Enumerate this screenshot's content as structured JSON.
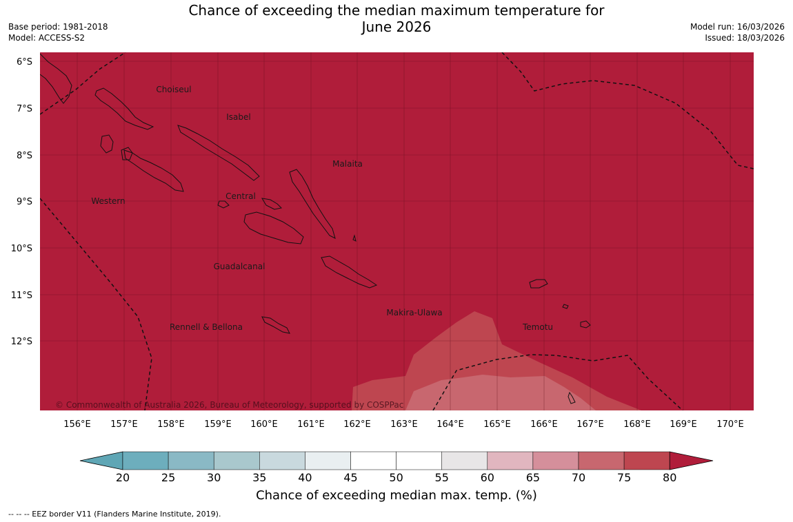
{
  "header": {
    "title_line1": "Chance of exceeding the median maximum temperature for",
    "title_line2": "June 2026",
    "base_period": "Base period: 1981-2018",
    "model": "Model: ACCESS-S2",
    "model_run": "Model run: 16/03/2026",
    "issued": "Issued: 18/03/2026"
  },
  "map": {
    "lat_labels": [
      "6°S",
      "7°S",
      "8°S",
      "9°S",
      "10°S",
      "11°S",
      "12°S"
    ],
    "lon_labels": [
      "156°E",
      "157°E",
      "158°E",
      "159°E",
      "160°E",
      "161°E",
      "162°E",
      "163°E",
      "164°E",
      "165°E",
      "166°E",
      "167°E",
      "168°E",
      "169°E",
      "170°E"
    ],
    "regions": [
      "Choiseul",
      "Isabel",
      "Malaita",
      "Western",
      "Central",
      "Guadalcanal",
      "Makira-Ulawa",
      "Rennell & Bellona",
      "Temotu"
    ],
    "copyright": "© Commonwealth of Australia 2026, Bureau of Meteorology, supported by COSPPac",
    "background_color": "#b01d3a"
  },
  "colorbar": {
    "ticks": [
      "20",
      "25",
      "30",
      "35",
      "40",
      "45",
      "50",
      "55",
      "60",
      "65",
      "70",
      "75",
      "80"
    ],
    "colors": [
      "#5fa6b5",
      "#6daebd",
      "#8ab9c5",
      "#a9c8cd",
      "#c9d9de",
      "#e9eff1",
      "#ffffff",
      "#ffffff",
      "#e8e6e7",
      "#e1b6bf",
      "#d58f9b",
      "#c8676f",
      "#be4650",
      "#b01d3a"
    ],
    "title": "Chance of exceeding median max. temp. (%)"
  },
  "footer": {
    "eez_note": "--  --  -- EEZ border V11 (Flanders Marine Institute, 2019)."
  }
}
